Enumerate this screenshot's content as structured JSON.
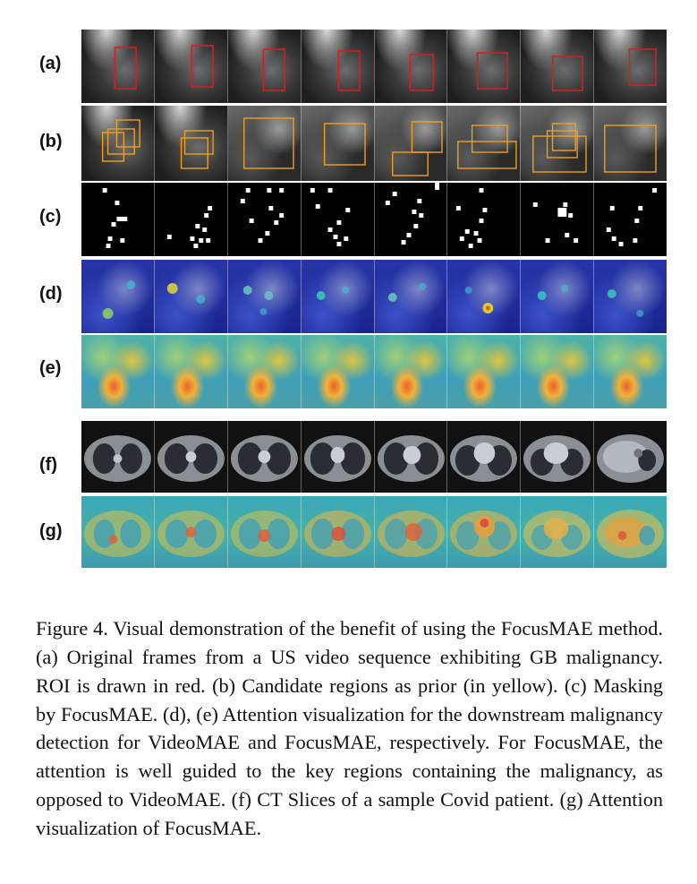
{
  "rows": [
    {
      "label": "(a)"
    },
    {
      "label": "(b)"
    },
    {
      "label": "(c)"
    },
    {
      "label": "(d)"
    },
    {
      "label": "(e)"
    },
    {
      "label": "(f)"
    },
    {
      "label": "(g)"
    }
  ],
  "colors": {
    "roi_box": "#cc2222",
    "candidate_box": "#f0a020"
  },
  "caption": "Figure 4.  Visual demonstration of the benefit of using the FocusMAE method. (a) Original frames from a US video sequence exhibiting GB malignancy. ROI is drawn in red. (b) Candidate regions as prior (in yellow). (c) Masking by FocusMAE. (d), (e) Attention visualization for the downstream malignancy detection for VideoMAE and FocusMAE, respectively. For FocusMAE, the attention is well guided to the key regions containing the malignancy, as opposed to VideoMAE. (f) CT Slices of a sample Covid patient. (g) Attention visualization of FocusMAE."
}
